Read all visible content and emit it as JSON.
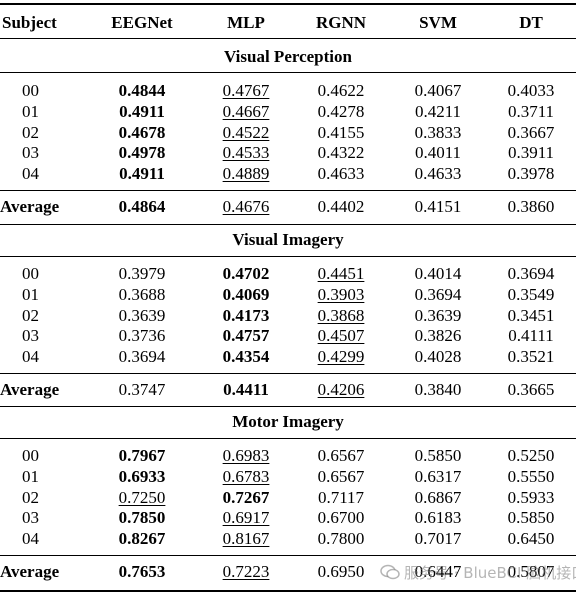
{
  "columns": [
    "Subject",
    "EEGNet",
    "MLP",
    "RGNN",
    "SVM",
    "DT"
  ],
  "sections": [
    {
      "title": "Visual Perception",
      "rows": [
        {
          "subject": "00",
          "values": [
            "0.4844",
            "0.4767",
            "0.4622",
            "0.4067",
            "0.4033"
          ],
          "bold": 0,
          "under": 1
        },
        {
          "subject": "01",
          "values": [
            "0.4911",
            "0.4667",
            "0.4278",
            "0.4211",
            "0.3711"
          ],
          "bold": 0,
          "under": 1
        },
        {
          "subject": "02",
          "values": [
            "0.4678",
            "0.4522",
            "0.4155",
            "0.3833",
            "0.3667"
          ],
          "bold": 0,
          "under": 1
        },
        {
          "subject": "03",
          "values": [
            "0.4978",
            "0.4533",
            "0.4322",
            "0.4011",
            "0.3911"
          ],
          "bold": 0,
          "under": 1
        },
        {
          "subject": "04",
          "values": [
            "0.4911",
            "0.4889",
            "0.4633",
            "0.4633",
            "0.3978"
          ],
          "bold": 0,
          "under": 1
        }
      ],
      "average": {
        "label": "Average",
        "values": [
          "0.4864",
          "0.4676",
          "0.4402",
          "0.4151",
          "0.3860"
        ],
        "bold": 0,
        "under": 1
      }
    },
    {
      "title": "Visual Imagery",
      "rows": [
        {
          "subject": "00",
          "values": [
            "0.3979",
            "0.4702",
            "0.4451",
            "0.4014",
            "0.3694"
          ],
          "bold": 1,
          "under": 2
        },
        {
          "subject": "01",
          "values": [
            "0.3688",
            "0.4069",
            "0.3903",
            "0.3694",
            "0.3549"
          ],
          "bold": 1,
          "under": 2
        },
        {
          "subject": "02",
          "values": [
            "0.3639",
            "0.4173",
            "0.3868",
            "0.3639",
            "0.3451"
          ],
          "bold": 1,
          "under": 2
        },
        {
          "subject": "03",
          "values": [
            "0.3736",
            "0.4757",
            "0.4507",
            "0.3826",
            "0.4111"
          ],
          "bold": 1,
          "under": 2
        },
        {
          "subject": "04",
          "values": [
            "0.3694",
            "0.4354",
            "0.4299",
            "0.4028",
            "0.3521"
          ],
          "bold": 1,
          "under": 2
        }
      ],
      "average": {
        "label": "Average",
        "values": [
          "0.3747",
          "0.4411",
          "0.4206",
          "0.3840",
          "0.3665"
        ],
        "bold": 1,
        "under": 2
      }
    },
    {
      "title": "Motor Imagery",
      "rows": [
        {
          "subject": "00",
          "values": [
            "0.7967",
            "0.6983",
            "0.6567",
            "0.5850",
            "0.5250"
          ],
          "bold": 0,
          "under": 1
        },
        {
          "subject": "01",
          "values": [
            "0.6933",
            "0.6783",
            "0.6567",
            "0.6317",
            "0.5550"
          ],
          "bold": 0,
          "under": 1
        },
        {
          "subject": "02",
          "values": [
            "0.7250",
            "0.7267",
            "0.7117",
            "0.6867",
            "0.5933"
          ],
          "bold": 1,
          "under": 0
        },
        {
          "subject": "03",
          "values": [
            "0.7850",
            "0.6917",
            "0.6700",
            "0.6183",
            "0.5850"
          ],
          "bold": 0,
          "under": 1
        },
        {
          "subject": "04",
          "values": [
            "0.8267",
            "0.8167",
            "0.7800",
            "0.7017",
            "0.6450"
          ],
          "bold": 0,
          "under": 1
        }
      ],
      "average": {
        "label": "Average",
        "values": [
          "0.7653",
          "0.7223",
          "0.6950",
          "0.6447",
          "0.5807"
        ],
        "bold": 0,
        "under": 1
      }
    }
  ],
  "watermark": "服务号 · BlueBCI 脑机接口",
  "colors": {
    "text": "#000000",
    "rule": "#000000",
    "watermark": "#8a8a8a"
  }
}
